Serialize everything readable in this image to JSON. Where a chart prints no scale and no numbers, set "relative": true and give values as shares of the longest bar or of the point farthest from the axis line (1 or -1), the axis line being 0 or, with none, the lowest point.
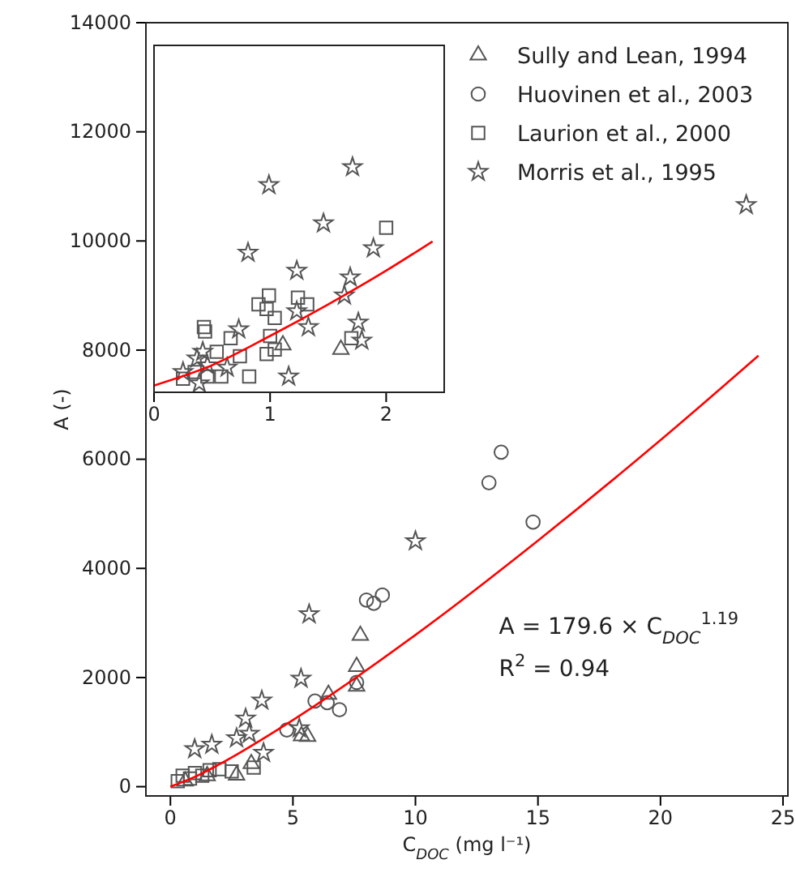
{
  "chart_data": [
    {
      "type": "scatter",
      "xlabel": "C$_{DOC}$ (mg l⁻¹)",
      "ylabel": "A (-)",
      "xlim": [
        -1,
        25.2
      ],
      "xticks": [
        0,
        5,
        10,
        15,
        20,
        25
      ],
      "ylim": [
        -170,
        14000
      ],
      "yticks": [
        0,
        2000,
        4000,
        6000,
        8000,
        10000,
        12000,
        14000
      ],
      "grid": false,
      "legend": "top right",
      "annotations": [
        "A = 179.6 × C$_{DOC}$$^{1.19}$",
        "R$^{2}$ = 0.94"
      ],
      "series": [
        {
          "name": "Sully and Lean, 1994",
          "color": "#555555",
          "marker": "triangle",
          "x": [
            0.6,
            1.5,
            2.7,
            3.3,
            5.35,
            5.6,
            6.45,
            7.6,
            7.6,
            7.75
          ],
          "values": [
            100,
            200,
            210,
            420,
            930,
            920,
            1690,
            1840,
            2200,
            2770
          ]
        },
        {
          "name": "Huovinen et al., 2003",
          "color": "#555555",
          "marker": "circle",
          "x": [
            4.75,
            5.9,
            6.4,
            6.9,
            7.6,
            8.0,
            8.3,
            8.65,
            13.0,
            13.5,
            14.8
          ],
          "values": [
            1040,
            1570,
            1540,
            1410,
            1910,
            3420,
            3360,
            3510,
            5570,
            6130,
            4850
          ]
        },
        {
          "name": "Laurion et al., 2000",
          "color": "#555555",
          "marker": "square",
          "x": [
            0.3,
            0.5,
            0.8,
            1.0,
            1.3,
            1.6,
            2.0,
            2.5,
            3.4
          ],
          "values": [
            100,
            200,
            150,
            250,
            200,
            300,
            320,
            280,
            350
          ]
        },
        {
          "name": "Morris et al., 1995",
          "color": "#555555",
          "marker": "star",
          "x": [
            0.99,
            1.69,
            2.7,
            3.07,
            3.22,
            3.73,
            3.8,
            5.26,
            5.33,
            5.66,
            10.0,
            23.5
          ],
          "values": [
            690,
            770,
            890,
            1250,
            970,
            1580,
            620,
            1070,
            1980,
            3160,
            4500,
            10660
          ]
        },
        {
          "type": "line",
          "color": "#ff0000",
          "marker": "none",
          "x": [
            0,
            1,
            2,
            5,
            10,
            15,
            20,
            24
          ],
          "values": [
            0,
            180,
            410,
            1220,
            2780,
            4510,
            6350,
            7900
          ]
        }
      ]
    },
    {
      "type": "scatter",
      "xlim": [
        0,
        2.5
      ],
      "xticks": [
        0,
        1,
        2
      ],
      "relative": true,
      "tick_labels": "x",
      "grid": false,
      "legend": false,
      "series": [
        {
          "color": "#555555",
          "marker": "triangle",
          "x": [
            1.11,
            1.61
          ],
          "values": [
            0.21,
            0.19
          ]
        },
        {
          "color": "#555555",
          "marker": "square",
          "x": [
            2.0,
            0.9,
            0.99,
            0.97,
            1.04,
            1.24,
            1.32,
            0.43,
            0.44,
            0.66,
            0.74,
            0.82,
            1.0,
            0.97,
            1.04,
            1.7,
            0.58,
            0.46,
            0.25,
            0.35,
            0.54
          ],
          "values": [
            0.73,
            0.39,
            0.43,
            0.37,
            0.33,
            0.42,
            0.39,
            0.29,
            0.27,
            0.24,
            0.16,
            0.07,
            0.25,
            0.17,
            0.19,
            0.24,
            0.07,
            0.07,
            0.06,
            0.09,
            0.18
          ]
        },
        {
          "color": "#555555",
          "marker": "star",
          "x": [
            1.71,
            0.99,
            1.46,
            0.81,
            1.89,
            1.23,
            1.69,
            1.64,
            1.23,
            1.33,
            1.76,
            1.79,
            0.73,
            1.16,
            0.42,
            0.37,
            0.46,
            0.25,
            0.39,
            0.63
          ],
          "values": [
            1,
            0.92,
            0.75,
            0.62,
            0.64,
            0.54,
            0.51,
            0.43,
            0.36,
            0.29,
            0.31,
            0.23,
            0.28,
            0.07,
            0.18,
            0.15,
            0.12,
            0.09,
            0.04,
            0.11
          ]
        },
        {
          "type": "line",
          "color": "#ff0000",
          "marker": "none",
          "x": [
            0,
            0.5,
            1,
            1.5,
            2,
            2.4
          ],
          "values": [
            0.03,
            0.12,
            0.25,
            0.39,
            0.54,
            0.67
          ]
        }
      ]
    }
  ]
}
